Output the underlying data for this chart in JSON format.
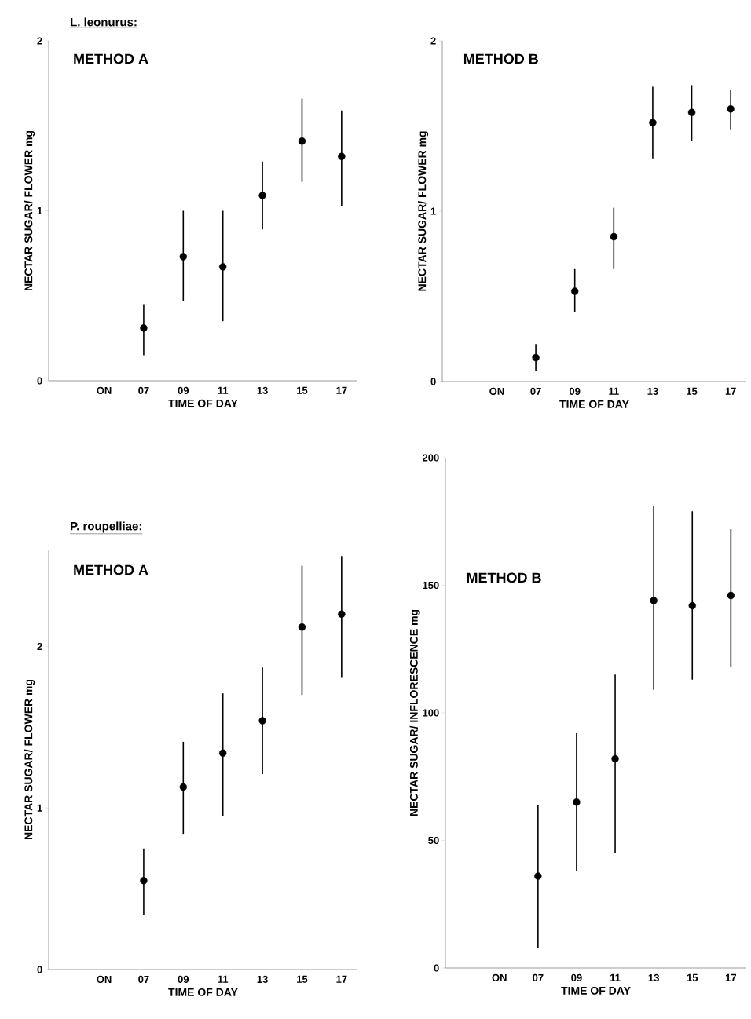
{
  "chart_data": [
    {
      "type": "scatter",
      "title": "L. leonurus:",
      "subtitle": "METHOD A",
      "xlabel": "TIME OF DAY",
      "ylabel": "NECTAR SUGAR/ FLOWER   mg",
      "categories": [
        "ON",
        "07",
        "09",
        "11",
        "13",
        "15",
        "17"
      ],
      "marker": "circle",
      "color": "#000000",
      "values": [
        null,
        0.31,
        0.73,
        0.67,
        1.09,
        1.41,
        1.32
      ],
      "errors": [
        null,
        [
          0.15,
          0.45
        ],
        [
          0.47,
          1.0
        ],
        [
          0.35,
          1.0
        ],
        [
          0.89,
          1.29
        ],
        [
          1.17,
          1.66
        ],
        [
          1.03,
          1.59
        ]
      ],
      "ylim": [
        0,
        2
      ],
      "yticks": [
        0,
        1,
        2
      ]
    },
    {
      "type": "scatter",
      "title": "METHOD B",
      "xlabel": "TIME OF DAY",
      "ylabel": "NECTAR SUGAR/ FLOWER   mg",
      "categories": [
        "ON",
        "07",
        "09",
        "11",
        "13",
        "15",
        "17"
      ],
      "marker": "circle",
      "color": "#000000",
      "values": [
        null,
        0.14,
        0.53,
        0.85,
        1.52,
        1.58,
        1.6
      ],
      "errors": [
        null,
        [
          0.06,
          0.22
        ],
        [
          0.41,
          0.66
        ],
        [
          0.66,
          1.02
        ],
        [
          1.31,
          1.73
        ],
        [
          1.41,
          1.74
        ],
        [
          1.48,
          1.71
        ]
      ],
      "ylim": [
        0,
        2
      ],
      "yticks": [
        0,
        1,
        2
      ]
    },
    {
      "type": "scatter",
      "title": "P. roupelliae:",
      "subtitle": "METHOD A",
      "xlabel": "TIME OF DAY",
      "ylabel": "NECTAR SUGAR/ FLOWER   mg",
      "categories": [
        "ON",
        "07",
        "09",
        "11",
        "13",
        "15",
        "17"
      ],
      "marker": "circle",
      "color": "#000000",
      "values": [
        null,
        0.55,
        1.13,
        1.34,
        1.54,
        2.12,
        2.2
      ],
      "errors": [
        null,
        [
          0.34,
          0.75
        ],
        [
          0.84,
          1.41
        ],
        [
          0.95,
          1.71
        ],
        [
          1.21,
          1.87
        ],
        [
          1.7,
          2.5
        ],
        [
          1.81,
          2.56
        ]
      ],
      "ylim": [
        0,
        2.6
      ],
      "yticks": [
        0,
        1,
        2
      ]
    },
    {
      "type": "scatter",
      "title": "METHOD B",
      "xlabel": "TIME OF DAY",
      "ylabel": "NECTAR SUGAR/ INFLORESCENCE   mg",
      "categories": [
        "ON",
        "07",
        "09",
        "11",
        "13",
        "15",
        "17"
      ],
      "marker": "circle",
      "color": "#000000",
      "values": [
        null,
        36,
        65,
        82,
        144,
        142,
        146
      ],
      "errors": [
        null,
        [
          8,
          64
        ],
        [
          38,
          92
        ],
        [
          45,
          115
        ],
        [
          109,
          181
        ],
        [
          113,
          179
        ],
        [
          118,
          172
        ]
      ],
      "ylim": [
        0,
        200
      ],
      "yticks": [
        0,
        50,
        100,
        150,
        200
      ]
    }
  ]
}
